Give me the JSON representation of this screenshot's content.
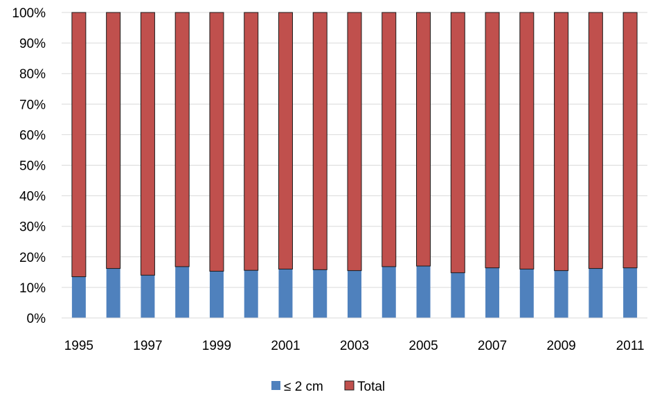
{
  "chart_data": {
    "type": "bar",
    "stacked": true,
    "percent_stacked": true,
    "title": "",
    "xlabel": "",
    "ylabel": "",
    "ylim": [
      0,
      100
    ],
    "y_ticks": [
      "0%",
      "10%",
      "20%",
      "30%",
      "40%",
      "50%",
      "60%",
      "70%",
      "80%",
      "90%",
      "100%"
    ],
    "categories": [
      "1995",
      "1996",
      "1997",
      "1998",
      "1999",
      "2000",
      "2001",
      "2002",
      "2003",
      "2004",
      "2005",
      "2006",
      "2007",
      "2008",
      "2009",
      "2010",
      "2011"
    ],
    "x_tick_labels_shown": [
      "1995",
      "1997",
      "1999",
      "2001",
      "2003",
      "2005",
      "2007",
      "2009",
      "2011"
    ],
    "series": [
      {
        "name": "≤ 2 cm",
        "color": "#4f81bd",
        "values": [
          13.5,
          16.2,
          14.0,
          16.8,
          15.3,
          15.6,
          16.0,
          15.8,
          15.5,
          16.8,
          17.0,
          14.8,
          16.4,
          16.0,
          15.5,
          16.2,
          16.4
        ]
      },
      {
        "name": "Total",
        "color": "#c0504d",
        "values": [
          86.5,
          83.8,
          86.0,
          83.2,
          84.7,
          84.4,
          84.0,
          84.2,
          84.5,
          83.2,
          83.0,
          85.2,
          83.6,
          84.0,
          84.5,
          83.8,
          83.6
        ]
      }
    ],
    "grid": true,
    "legend_position": "bottom"
  }
}
